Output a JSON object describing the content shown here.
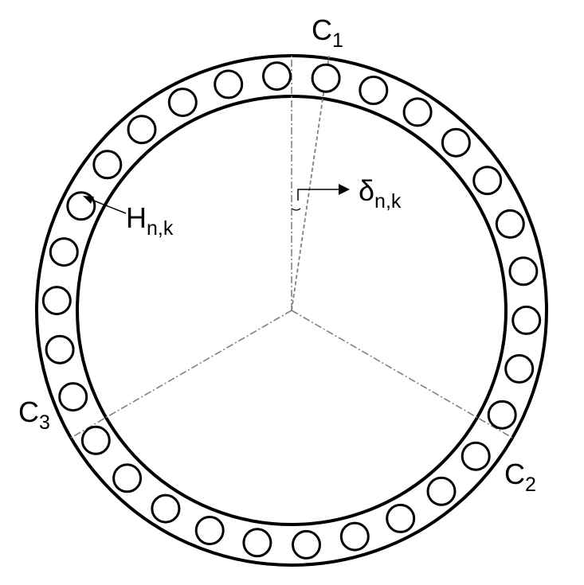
{
  "diagram": {
    "description_free": true,
    "holes": {
      "count": 30
    },
    "labels": {
      "c1": {
        "main": "C",
        "sub": "1"
      },
      "c2": {
        "main": "C",
        "sub": "2"
      },
      "c3": {
        "main": "C",
        "sub": "3"
      },
      "h": {
        "main": "H",
        "sub": "n,k"
      },
      "delta": {
        "main": "δ",
        "sub": "n,k"
      }
    },
    "colors": {
      "ring": "#000000",
      "hole": "#000000",
      "dashed": "#808080",
      "arrow": "#000000"
    }
  }
}
